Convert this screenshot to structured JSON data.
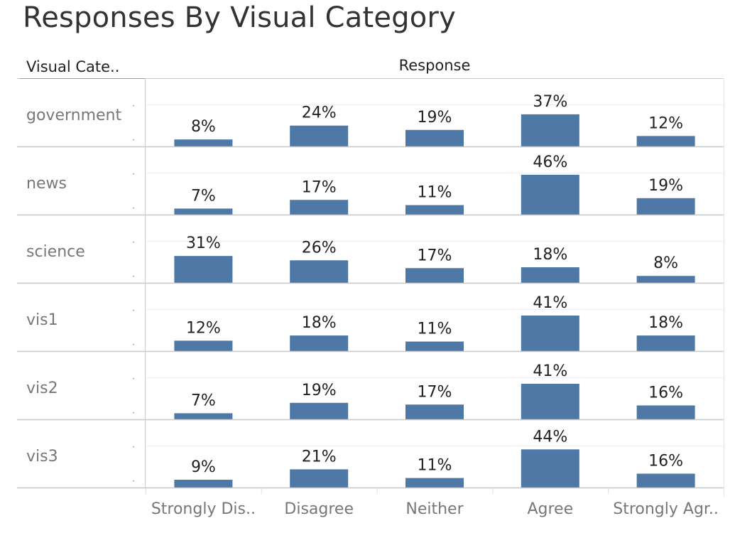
{
  "title": "Responses By Visual Category",
  "header": {
    "row_dimension": "Visual Cate..",
    "column_dimension": "Response"
  },
  "colors": {
    "bar": "#4e79a7",
    "grid": "#cccccc",
    "text": "#222222",
    "muted": "#777777"
  },
  "chart_data": {
    "type": "bar",
    "title": "Responses By Visual Category",
    "xlabel": "Response",
    "ylabel": "Visual Category",
    "categories": [
      "Strongly Dis..",
      "Disagree",
      "Neither",
      "Agree",
      "Strongly Agr.."
    ],
    "series": [
      {
        "name": "government",
        "values": [
          8,
          24,
          19,
          37,
          12
        ],
        "labels": [
          "8%",
          "24%",
          "19%",
          "37%",
          "12%"
        ]
      },
      {
        "name": "news",
        "values": [
          7,
          17,
          11,
          46,
          19
        ],
        "labels": [
          "7%",
          "17%",
          "11%",
          "46%",
          "19%"
        ]
      },
      {
        "name": "science",
        "values": [
          31,
          26,
          17,
          18,
          8
        ],
        "labels": [
          "31%",
          "26%",
          "17%",
          "18%",
          "8%"
        ]
      },
      {
        "name": "vis1",
        "values": [
          12,
          18,
          11,
          41,
          18
        ],
        "labels": [
          "12%",
          "18%",
          "11%",
          "41%",
          "18%"
        ]
      },
      {
        "name": "vis2",
        "values": [
          7,
          19,
          17,
          41,
          16
        ],
        "labels": [
          "7%",
          "19%",
          "17%",
          "41%",
          "16%"
        ]
      },
      {
        "name": "vis3",
        "values": [
          9,
          21,
          11,
          44,
          16
        ],
        "labels": [
          "9%",
          "21%",
          "11%",
          "44%",
          "16%"
        ]
      }
    ],
    "value_unit": "%",
    "ylim": [
      0,
      50
    ],
    "grid": true
  }
}
